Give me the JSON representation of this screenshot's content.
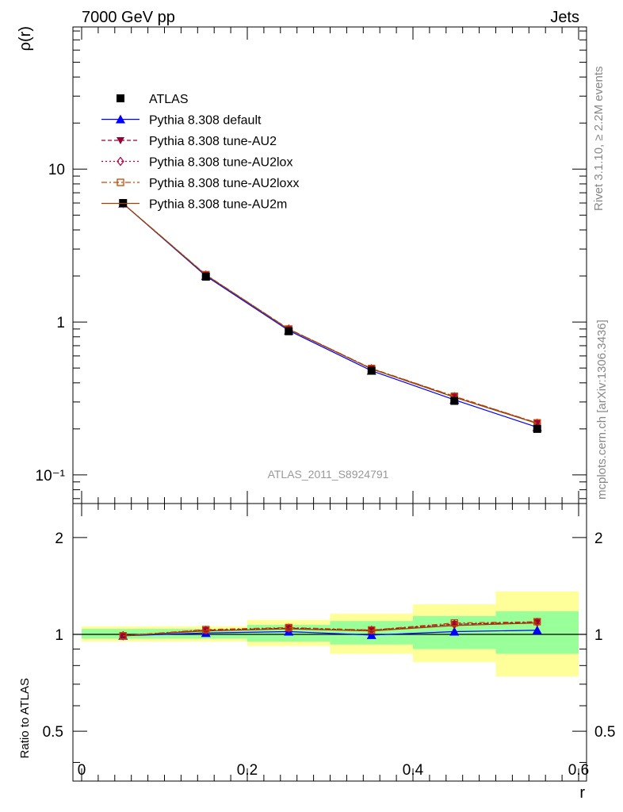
{
  "header": {
    "left": "7000 GeV pp",
    "right": "Jets"
  },
  "side_text": {
    "rivet": "Rivet 3.1.10, ≥ 2.2M events",
    "mcplots": "mcplots.cern.ch [arXiv:1306.3436]"
  },
  "watermark": "ATLAS_2011_S8924791",
  "legend": [
    {
      "label": "ATLAS",
      "marker": "square",
      "color": "#000000",
      "dash": ""
    },
    {
      "label": "Pythia 8.308 default",
      "marker": "triangle-up",
      "color": "#0000ff",
      "dash": ""
    },
    {
      "label": "Pythia 8.308 tune-AU2",
      "marker": "triangle-down",
      "color": "#990033",
      "dash": "5,3"
    },
    {
      "label": "Pythia 8.308 tune-AU2lox",
      "marker": "diamond-open",
      "color": "#b3003b",
      "dash": "2,3"
    },
    {
      "label": "Pythia 8.308 tune-AU2loxx",
      "marker": "square-open",
      "color": "#cc4400",
      "dash": "7,3,2,3"
    },
    {
      "label": "Pythia 8.308 tune-AU2m",
      "marker": "line",
      "color": "#994400",
      "dash": ""
    }
  ],
  "chart_data": [
    {
      "type": "line",
      "panel": "main",
      "ylabel": "ρ(r)",
      "xlabel": "",
      "xlim": [
        0,
        0.6
      ],
      "ylim": [
        0.065,
        85
      ],
      "yscale": "log",
      "y_tick_labels": [
        "10⁻¹",
        "1",
        "10"
      ],
      "x": [
        0.05,
        0.15,
        0.25,
        0.35,
        0.45,
        0.55
      ],
      "series": [
        {
          "name": "ATLAS",
          "values": [
            6.0,
            1.98,
            0.87,
            0.48,
            0.305,
            0.2
          ],
          "errors": [
            0.15,
            0.05,
            0.03,
            0.02,
            0.015,
            0.012
          ]
        },
        {
          "name": "Pythia 8.308 default",
          "values": [
            5.95,
            2.0,
            0.88,
            0.48,
            0.31,
            0.205
          ]
        },
        {
          "name": "Pythia 8.308 tune-AU2",
          "values": [
            5.95,
            2.03,
            0.9,
            0.495,
            0.325,
            0.218
          ]
        },
        {
          "name": "Pythia 8.308 tune-AU2lox",
          "values": [
            5.95,
            2.03,
            0.9,
            0.495,
            0.325,
            0.218
          ]
        },
        {
          "name": "Pythia 8.308 tune-AU2loxx",
          "values": [
            5.95,
            2.04,
            0.9,
            0.497,
            0.327,
            0.219
          ]
        },
        {
          "name": "Pythia 8.308 tune-AU2m",
          "values": [
            5.95,
            2.03,
            0.895,
            0.493,
            0.322,
            0.217
          ]
        }
      ]
    },
    {
      "type": "line",
      "panel": "ratio",
      "ylabel": "Ratio to ATLAS",
      "xlabel": "r",
      "xlim": [
        0,
        0.6
      ],
      "ylim": [
        0.35,
        2.55
      ],
      "yscale": "log",
      "y_tick_labels": [
        "0.5",
        "1",
        "2"
      ],
      "x_tick_labels": [
        "0",
        "0.2",
        "0.4",
        "0.6"
      ],
      "bin_edges": [
        0,
        0.1,
        0.2,
        0.3,
        0.4,
        0.5,
        0.6
      ],
      "band_inner": [
        [
          0.97,
          1.04
        ],
        [
          0.97,
          1.04
        ],
        [
          0.95,
          1.07
        ],
        [
          0.93,
          1.1
        ],
        [
          0.9,
          1.14
        ],
        [
          0.87,
          1.18
        ]
      ],
      "band_outer": [
        [
          0.95,
          1.06
        ],
        [
          0.95,
          1.06
        ],
        [
          0.92,
          1.11
        ],
        [
          0.87,
          1.16
        ],
        [
          0.82,
          1.24
        ],
        [
          0.74,
          1.36
        ]
      ],
      "x": [
        0.05,
        0.15,
        0.25,
        0.35,
        0.45,
        0.55
      ],
      "series": [
        {
          "name": "Pythia 8.308 default",
          "values": [
            0.99,
            1.01,
            1.02,
            0.995,
            1.02,
            1.03
          ]
        },
        {
          "name": "Pythia 8.308 tune-AU2",
          "values": [
            0.99,
            1.03,
            1.045,
            1.03,
            1.075,
            1.09
          ]
        },
        {
          "name": "Pythia 8.308 tune-AU2lox",
          "values": [
            0.99,
            1.03,
            1.045,
            1.03,
            1.075,
            1.09
          ]
        },
        {
          "name": "Pythia 8.308 tune-AU2loxx",
          "values": [
            0.99,
            1.035,
            1.05,
            1.032,
            1.085,
            1.095
          ]
        },
        {
          "name": "Pythia 8.308 tune-AU2m",
          "values": [
            0.99,
            1.025,
            1.04,
            1.025,
            1.065,
            1.085
          ]
        }
      ]
    }
  ]
}
